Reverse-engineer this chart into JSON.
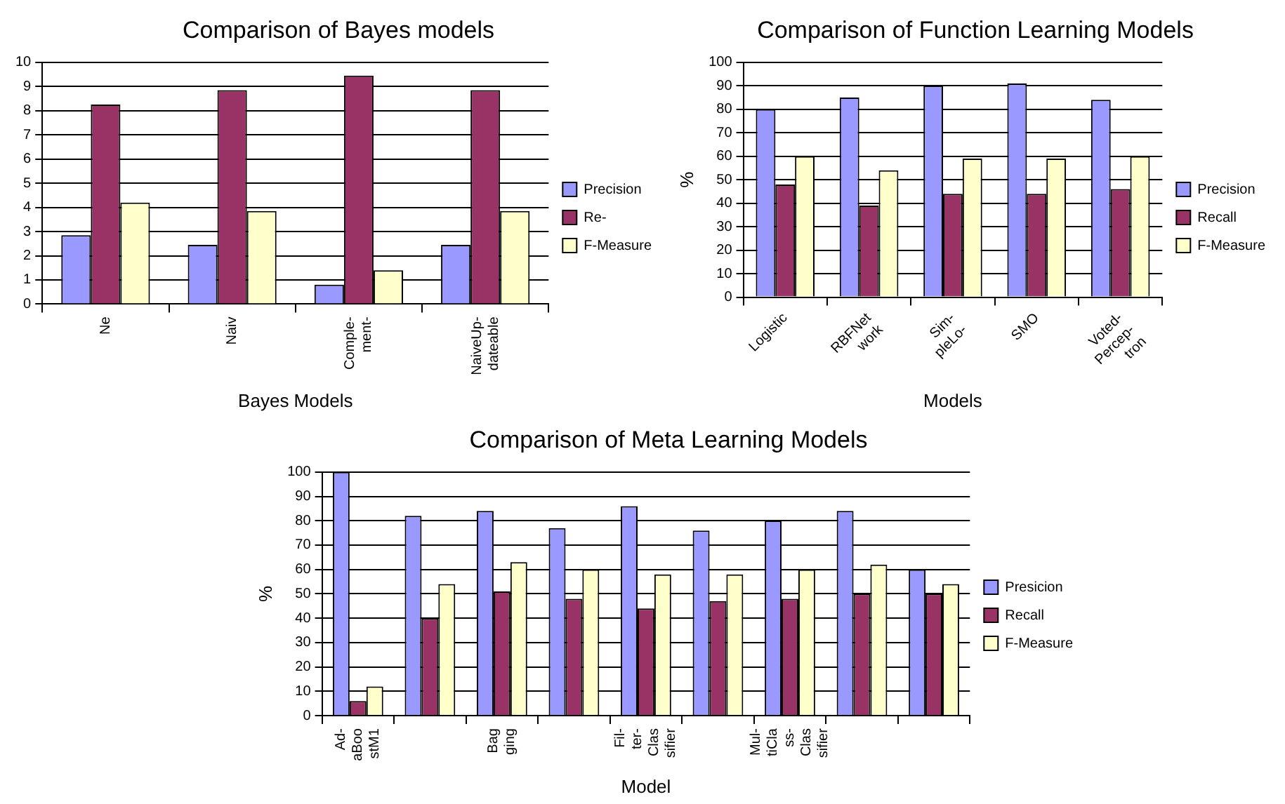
{
  "chart_data": [
    {
      "type": "bar",
      "title": "Comparison of Bayes models",
      "xlabel": "Bayes Models",
      "categories": [
        "Ne",
        "Naiv",
        "Comple- ment-",
        "NaiveUp- dateable"
      ],
      "series": [
        {
          "name": "Precision",
          "color": "#9999ff",
          "values": [
            2.85,
            2.45,
            0.8,
            2.45
          ]
        },
        {
          "name": "Re-",
          "color": "#993366",
          "values": [
            8.25,
            8.85,
            9.45,
            8.85
          ]
        },
        {
          "name": "F-Measure",
          "color": "#ffffcc",
          "values": [
            4.2,
            3.85,
            1.4,
            3.85
          ]
        }
      ],
      "ylim": [
        0,
        10
      ],
      "yticks": [
        0,
        1,
        2,
        3,
        4,
        5,
        6,
        7,
        8,
        9,
        10
      ],
      "grid": "y",
      "legend": "right"
    },
    {
      "type": "bar",
      "title": "Comparison of Function Learning Models",
      "xlabel": "Models",
      "ylabel": "%",
      "categories": [
        "Logistic",
        "RBFNet work",
        "Sim- pleLo-",
        "SMO",
        "Voted- Percep- tron"
      ],
      "series": [
        {
          "name": "Precision",
          "color": "#9999ff",
          "values": [
            80,
            85,
            90,
            91,
            84
          ]
        },
        {
          "name": "Recall",
          "color": "#993366",
          "values": [
            48,
            39,
            44,
            44,
            46
          ]
        },
        {
          "name": "F-Measure",
          "color": "#ffffcc",
          "values": [
            60,
            54,
            59,
            59,
            60
          ]
        }
      ],
      "ylim": [
        0,
        100
      ],
      "yticks": [
        0,
        10,
        20,
        30,
        40,
        50,
        60,
        70,
        80,
        90,
        100
      ],
      "grid": "y",
      "legend": "right"
    },
    {
      "type": "bar",
      "title": "Comparison of Meta Learning Models",
      "xlabel": "Model",
      "ylabel": "%",
      "categories": [
        "Ad- aBoo stM1",
        null,
        "Bag ging",
        null,
        "Fil- ter- Clas sifier",
        null,
        "Mul- tiCla ss- Clas sifier",
        null,
        null
      ],
      "series": [
        {
          "name": "Presicion",
          "color": "#9999ff",
          "values": [
            100,
            82,
            84,
            77,
            86,
            76,
            80,
            84,
            60
          ]
        },
        {
          "name": "Recall",
          "color": "#993366",
          "values": [
            6,
            40,
            51,
            48,
            44,
            47,
            48,
            50,
            50
          ]
        },
        {
          "name": "F-Measure",
          "color": "#ffffcc",
          "values": [
            12,
            54,
            63,
            60,
            58,
            58,
            60,
            62,
            54
          ]
        }
      ],
      "ylim": [
        0,
        100
      ],
      "yticks": [
        0,
        10,
        20,
        30,
        40,
        50,
        60,
        70,
        80,
        90,
        100
      ],
      "grid": "y",
      "legend": "right"
    }
  ]
}
